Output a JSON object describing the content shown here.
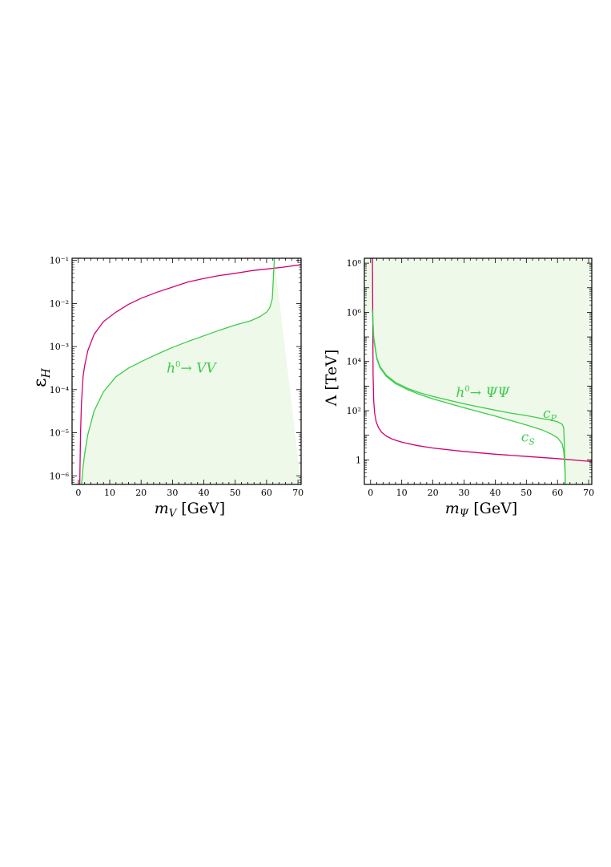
{
  "chart_data": [
    {
      "type": "line",
      "xlabel_symbol": "m",
      "xlabel_sub": "V",
      "xlabel_unit": "[GeV]",
      "ylabel_symbol": "ε",
      "ylabel_sub": "H",
      "xlim": [
        -2,
        71
      ],
      "x_ticks": [
        0,
        10,
        20,
        30,
        40,
        50,
        60,
        70
      ],
      "yscale": "log",
      "ylim_log10": [
        -6.2,
        -0.95
      ],
      "y_ticks_log10": [
        -6,
        -5,
        -4,
        -3,
        -2,
        -1
      ],
      "shaded_region": "below green curve",
      "annotation": {
        "base": "h",
        "sup": "0",
        "arrow": "→",
        "products": "VV",
        "x": 36,
        "y_log10": -3.6
      },
      "series": [
        {
          "color": "#d4006f",
          "x": [
            0.45,
            0.7,
            1,
            1.5,
            2,
            3,
            5,
            8,
            12,
            16,
            20,
            25,
            30,
            35,
            40,
            45,
            50,
            55,
            60,
            65,
            71
          ],
          "y_log10": [
            -6.2,
            -5,
            -4.3,
            -3.7,
            -3.45,
            -3.1,
            -2.72,
            -2.42,
            -2.2,
            -2.02,
            -1.88,
            -1.74,
            -1.62,
            -1.5,
            -1.42,
            -1.35,
            -1.3,
            -1.24,
            -1.2,
            -1.16,
            -1.1
          ]
        },
        {
          "color": "#3ccc4a",
          "x": [
            1,
            1.5,
            2,
            3,
            5,
            8,
            12,
            16,
            20,
            25,
            30,
            35,
            40,
            45,
            50,
            55,
            58,
            60,
            61,
            61.8,
            62.1,
            62.3,
            62.5
          ],
          "y_log10": [
            -6.2,
            -5.8,
            -5.5,
            -5.05,
            -4.5,
            -4.05,
            -3.7,
            -3.5,
            -3.35,
            -3.18,
            -3.02,
            -2.88,
            -2.75,
            -2.62,
            -2.5,
            -2.4,
            -2.3,
            -2.2,
            -2.1,
            -1.9,
            -1.5,
            -1.2,
            -0.95
          ]
        }
      ]
    },
    {
      "type": "line",
      "xlabel_symbol": "m",
      "xlabel_sub": "Ψ",
      "xlabel_unit": "[GeV]",
      "ylabel": "Λ [TeV]",
      "xlim": [
        -2,
        71
      ],
      "x_ticks": [
        0,
        10,
        20,
        30,
        40,
        50,
        60,
        70
      ],
      "yscale": "log",
      "ylim_log10": [
        -1.0,
        8.2
      ],
      "y_ticks_log10": [
        0,
        2,
        4,
        6,
        8
      ],
      "y_tick_labels": [
        "1",
        "10²",
        "10⁴",
        "10⁶",
        "10⁸"
      ],
      "shaded_region": "above lower green curve",
      "annotation": {
        "base": "h",
        "sup": "0",
        "arrow": "→",
        "products": "ΨΨ",
        "x": 36,
        "y_log10": 2.55
      },
      "labels": [
        {
          "base": "c",
          "sub": "P",
          "x": 57.5,
          "y_log10": 1.7
        },
        {
          "base": "c",
          "sub": "S",
          "x": 50.5,
          "y_log10": 0.75
        }
      ],
      "series": [
        {
          "color": "#d4006f",
          "x": [
            0.6,
            0.8,
            1,
            1.3,
            1.8,
            2.5,
            3.5,
            5,
            7,
            10,
            15,
            20,
            30,
            40,
            50,
            60,
            71
          ],
          "y_log10": [
            8.2,
            3.5,
            2.4,
            1.9,
            1.55,
            1.32,
            1.13,
            0.97,
            0.84,
            0.72,
            0.58,
            0.48,
            0.34,
            0.23,
            0.14,
            0.05,
            -0.07
          ]
        },
        {
          "color": "#3ccc4a",
          "name": "c_P",
          "x": [
            0.6,
            1,
            2,
            3,
            5,
            8,
            12,
            16,
            20,
            25,
            30,
            35,
            40,
            45,
            50,
            55,
            58,
            60,
            61.5,
            62,
            62.2,
            62.4,
            62.5
          ],
          "y_log10": [
            6.1,
            5.0,
            4.15,
            3.8,
            3.45,
            3.15,
            2.9,
            2.72,
            2.58,
            2.43,
            2.28,
            2.15,
            2.02,
            1.9,
            1.8,
            1.68,
            1.62,
            1.55,
            1.45,
            1.3,
            0.6,
            -0.3,
            -1.0
          ]
        },
        {
          "color": "#3ccc4a",
          "name": "c_S",
          "x": [
            0.6,
            1,
            2,
            3,
            5,
            8,
            12,
            16,
            20,
            25,
            30,
            35,
            40,
            45,
            50,
            55,
            58,
            60,
            61.5,
            62,
            62.2,
            62.4,
            62.5
          ],
          "y_log10": [
            6.0,
            4.9,
            4.1,
            3.75,
            3.4,
            3.1,
            2.85,
            2.65,
            2.48,
            2.3,
            2.12,
            1.95,
            1.78,
            1.6,
            1.42,
            1.22,
            1.05,
            0.9,
            0.65,
            0.35,
            0.0,
            -0.5,
            -1.0
          ]
        }
      ]
    }
  ]
}
